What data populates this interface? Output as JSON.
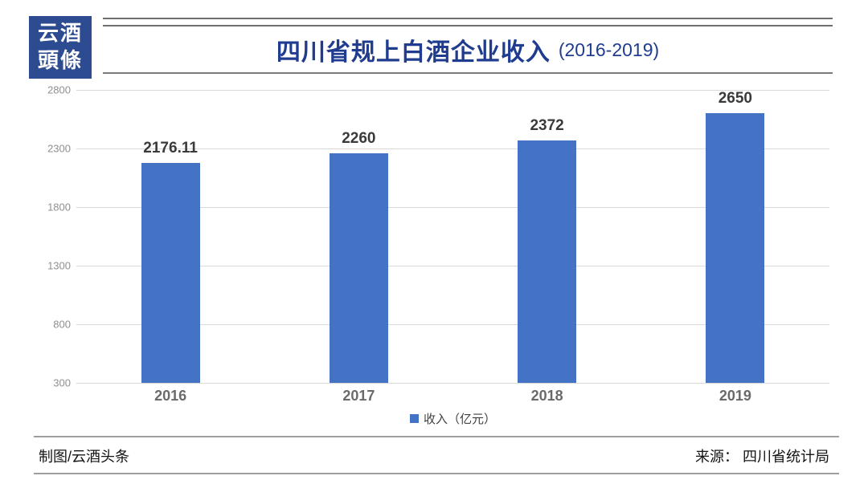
{
  "logo": {
    "line1": "云酒",
    "line2": "頭條"
  },
  "header": {
    "title": "四川省规上白酒企业收入",
    "subtitle": "(2016-2019)"
  },
  "chart_data": {
    "type": "bar",
    "title": "四川省规上白酒企业收入 (2016-2019)",
    "categories": [
      "2016",
      "2017",
      "2018",
      "2019"
    ],
    "values": [
      2176.11,
      2260,
      2372,
      2650
    ],
    "value_labels": [
      "2176.11",
      "2260",
      "2372",
      "2650"
    ],
    "xlabel": "",
    "ylabel": "",
    "ylim": [
      300,
      2800
    ],
    "yticks": [
      2800,
      2300,
      1800,
      1300,
      800,
      300
    ],
    "grid": true,
    "legend_position": "bottom",
    "legend": [
      {
        "name": "收入（亿元）",
        "color": "#4472C4"
      }
    ]
  },
  "footer": {
    "left": "制图/云酒头条",
    "right": "来源： 四川省统计局"
  },
  "colors": {
    "bar": "#4472C4",
    "title": "#203C8F",
    "logo_bg": "#2C4B90",
    "gridline": "#D9D9D9",
    "axis_text": "#8f8f8f"
  }
}
